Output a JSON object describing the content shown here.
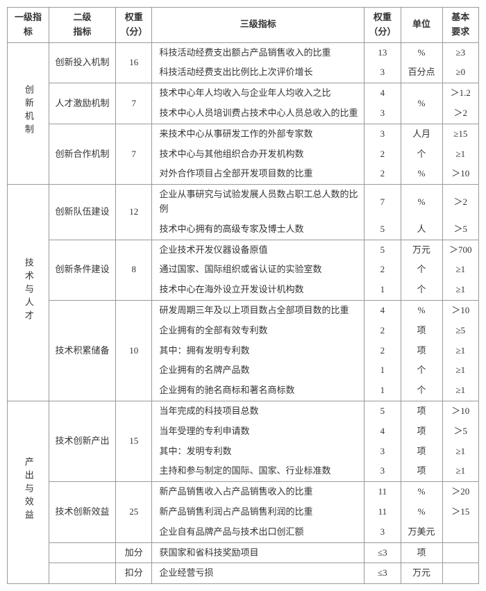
{
  "headers": {
    "h1": "一级指标",
    "h2": "二级\n指标",
    "h3": "权重\n（分）",
    "h4": "三级指标",
    "h5": "权重\n（分）",
    "h6": "单位",
    "h7": "基本\n要求"
  },
  "L1_1": "创新机制",
  "L1_2": "技术与人才",
  "L1_3": "产出与效益",
  "g1": {
    "name": "创新投入机制",
    "w": "16"
  },
  "g1r1": {
    "l3": "科技活动经费支出额占产品销售收入的比重",
    "w": "13",
    "u": "%",
    "req": "≥3"
  },
  "g1r2": {
    "l3": "科技活动经费支出比例比上次评价增长",
    "w": "3",
    "u": "百分点",
    "req": "≥0"
  },
  "g2": {
    "name": "人才激励机制",
    "w": "7"
  },
  "g2r1": {
    "l3": "技术中心年人均收入与企业年人均收入之比",
    "w": "4",
    "u": "%",
    "req": "＞1.2"
  },
  "g2r2": {
    "l3": "技术中心人员培训费占技术中心人员总收入的比重",
    "w": "3",
    "u": "",
    "req": "＞2"
  },
  "g3": {
    "name": "创新合作机制",
    "w": "7"
  },
  "g3r1": {
    "l3": "来技术中心从事研发工作的外部专家数",
    "w": "3",
    "u": "人月",
    "req": "≥15"
  },
  "g3r2": {
    "l3": "技术中心与其他组织合办开发机构数",
    "w": "2",
    "u": "个",
    "req": "≥1"
  },
  "g3r3": {
    "l3": "对外合作项目占全部开发项目数的比重",
    "w": "2",
    "u": "%",
    "req": "＞10"
  },
  "g4": {
    "name": "创新队伍建设",
    "w": "12"
  },
  "g4r1": {
    "l3": "企业从事研究与试验发展人员数占职工总人数的比例",
    "w": "7",
    "u": "%",
    "req": "＞2"
  },
  "g4r2": {
    "l3": "技术中心拥有的高级专家及博士人数",
    "w": "5",
    "u": "人",
    "req": "＞5"
  },
  "g5": {
    "name": "创新条件建设",
    "w": "8"
  },
  "g5r1": {
    "l3": "企业技术开发仪器设备原值",
    "w": "5",
    "u": "万元",
    "req": "＞700"
  },
  "g5r2": {
    "l3": "通过国家、国际组织或省认证的实验室数",
    "w": "2",
    "u": "个",
    "req": "≥1"
  },
  "g5r3": {
    "l3": "技术中心在海外设立开发设计机构数",
    "w": "1",
    "u": "个",
    "req": "≥1"
  },
  "g6": {
    "name": "技术积累储备",
    "w": "10"
  },
  "g6r1": {
    "l3": "研发周期三年及以上项目数占全部项目数的比重",
    "w": "4",
    "u": "%",
    "req": "＞10"
  },
  "g6r2": {
    "l3": "企业拥有的全部有效专利数",
    "w": "2",
    "u": "项",
    "req": "≥5"
  },
  "g6r3": {
    "l3": "其中：拥有发明专利数",
    "w": "2",
    "u": "项",
    "req": "≥1"
  },
  "g6r4": {
    "l3": "企业拥有的名牌产品数",
    "w": "1",
    "u": "个",
    "req": "≥1"
  },
  "g6r5": {
    "l3": "企业拥有的驰名商标和著名商标数",
    "w": "1",
    "u": "个",
    "req": "≥1"
  },
  "g7": {
    "name": "技术创新产出",
    "w": "15"
  },
  "g7r1": {
    "l3": "当年完成的科技项目总数",
    "w": "5",
    "u": "项",
    "req": "＞10"
  },
  "g7r2": {
    "l3": "当年受理的专利申请数",
    "w": "4",
    "u": "项",
    "req": "＞5"
  },
  "g7r3": {
    "l3": "其中：发明专利数",
    "w": "3",
    "u": "项",
    "req": "≥1"
  },
  "g7r4": {
    "l3": "主持和参与制定的国际、国家、行业标准数",
    "w": "3",
    "u": "项",
    "req": "≥1"
  },
  "g8": {
    "name": "技术创新效益",
    "w": "25"
  },
  "g8r1": {
    "l3": "新产品销售收入占产品销售收入的比重",
    "w": "11",
    "u": "%",
    "req": "＞20"
  },
  "g8r2": {
    "l3": "新产品销售利润占产品销售利润的比重",
    "w": "11",
    "u": "%",
    "req": "＞15"
  },
  "g8r3": {
    "l3": "企业自有品牌产品与技术出口创汇额",
    "w": "3",
    "u": "万美元",
    "req": ""
  },
  "g9": {
    "name": "",
    "w": "加分",
    "l3": "获国家和省科技奖励项目",
    "wc": "≤3",
    "u": "项",
    "req": ""
  },
  "g10": {
    "name": "",
    "w": "扣分",
    "l3": "企业经营亏损",
    "wc": "≤3",
    "u": "万元",
    "req": ""
  }
}
